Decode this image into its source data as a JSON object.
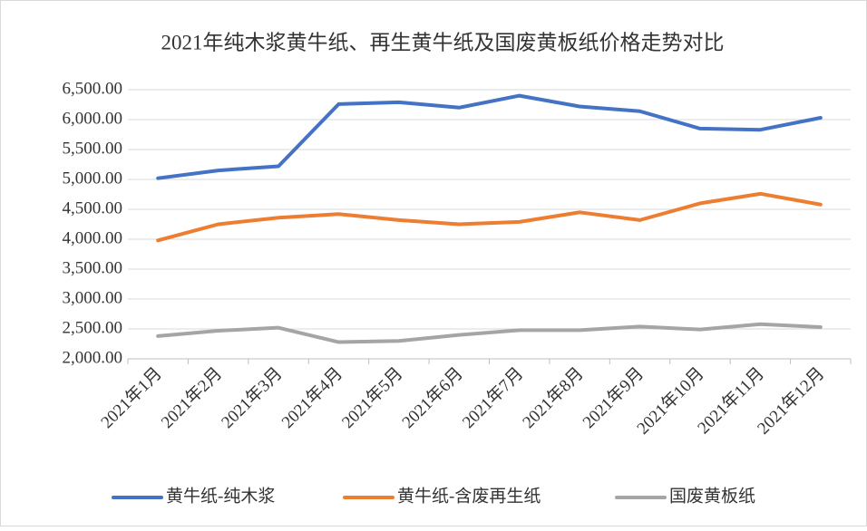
{
  "chart_data": {
    "type": "line",
    "title": "2021年纯木浆黄牛纸、再生黄牛纸及国废黄板纸价格走势对比",
    "categories": [
      "2021年1月",
      "2021年2月",
      "2021年3月",
      "2021年4月",
      "2021年5月",
      "2021年6月",
      "2021年7月",
      "2021年8月",
      "2021年9月",
      "2021年10月",
      "2021年11月",
      "2021年12月"
    ],
    "series": [
      {
        "name": "黄牛纸-纯木浆",
        "color": "#4472c4",
        "values": [
          5020,
          5150,
          5220,
          6260,
          6290,
          6200,
          6400,
          6220,
          6140,
          5850,
          5830,
          6030
        ]
      },
      {
        "name": "黄牛纸-含废再生纸",
        "color": "#ed7d31",
        "values": [
          3980,
          4250,
          4360,
          4420,
          4320,
          4250,
          4290,
          4450,
          4320,
          4600,
          4760,
          4580
        ]
      },
      {
        "name": "国废黄板纸",
        "color": "#a5a5a5",
        "values": [
          2380,
          2470,
          2520,
          2280,
          2300,
          2400,
          2480,
          2480,
          2540,
          2490,
          2580,
          2530
        ]
      }
    ],
    "ylim": [
      2000,
      6500
    ],
    "yticks": [
      {
        "value": 2000,
        "label": "2,000.00"
      },
      {
        "value": 2500,
        "label": "2,500.00"
      },
      {
        "value": 3000,
        "label": "3,000.00"
      },
      {
        "value": 3500,
        "label": "3,500.00"
      },
      {
        "value": 4000,
        "label": "4,000.00"
      },
      {
        "value": 4500,
        "label": "4,500.00"
      },
      {
        "value": 5000,
        "label": "5,000.00"
      },
      {
        "value": 5500,
        "label": "5,500.00"
      },
      {
        "value": 6000,
        "label": "6,000.00"
      },
      {
        "value": 6500,
        "label": "6,500.00"
      }
    ],
    "grid": true,
    "legend": "bottom"
  }
}
